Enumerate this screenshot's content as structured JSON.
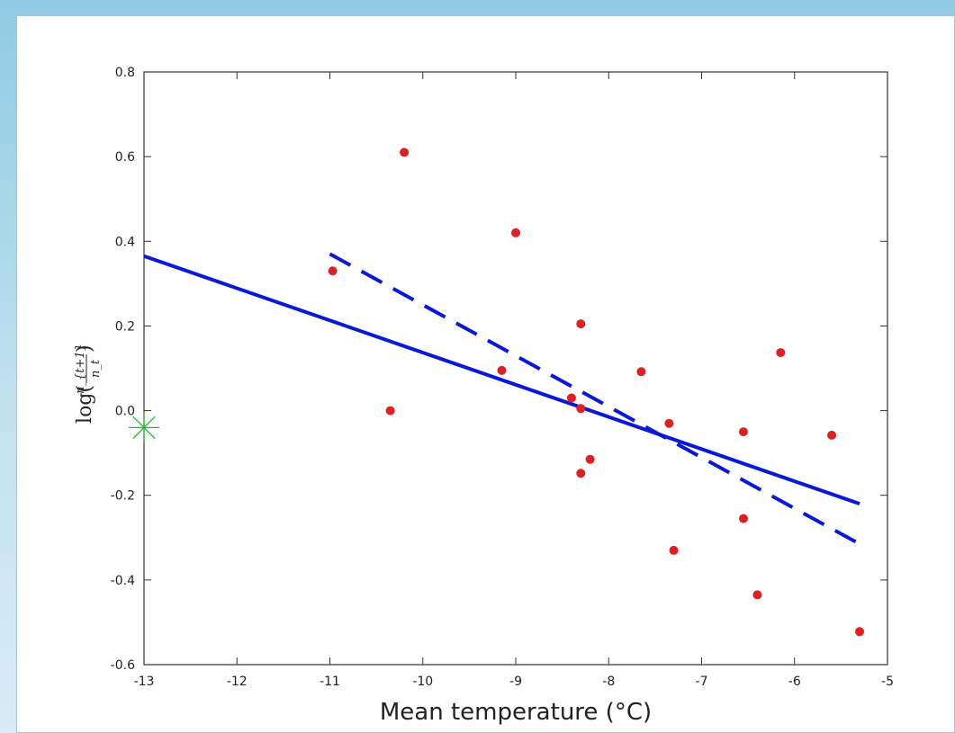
{
  "chart_data": {
    "type": "scatter",
    "xlabel": "Mean temperature (°C)",
    "ylabel": {
      "prefix": "log(",
      "numerator": "n_{t+1}",
      "denominator": "n_t",
      "suffix": ")"
    },
    "xlim": [
      -13,
      -5
    ],
    "ylim": [
      -0.6,
      0.8
    ],
    "x_ticks": [
      "-13",
      "-12",
      "-11",
      "-10",
      "-9",
      "-8",
      "-7",
      "-6",
      "-5"
    ],
    "y_ticks": [
      "-0.6",
      "-0.4",
      "-0.2",
      "0.0",
      "0.2",
      "0.4",
      "0.6",
      "0.8"
    ],
    "grid": false,
    "series": [
      {
        "kind": "points",
        "color": "#e02020",
        "points": [
          [
            -10.97,
            0.33
          ],
          [
            -10.2,
            0.61
          ],
          [
            -10.35,
            0.0
          ],
          [
            -9.0,
            0.42
          ],
          [
            -9.15,
            0.095
          ],
          [
            -8.4,
            0.03
          ],
          [
            -8.3,
            0.005
          ],
          [
            -8.3,
            0.205
          ],
          [
            -8.3,
            -0.148
          ],
          [
            -8.2,
            -0.115
          ],
          [
            -7.65,
            0.092
          ],
          [
            -7.35,
            -0.03
          ],
          [
            -7.3,
            -0.33
          ],
          [
            -6.55,
            -0.05
          ],
          [
            -6.55,
            -0.255
          ],
          [
            -6.4,
            -0.435
          ],
          [
            -6.15,
            0.137
          ],
          [
            -5.6,
            -0.058
          ],
          [
            -5.3,
            -0.522
          ]
        ]
      },
      {
        "kind": "line",
        "style": "solid",
        "color": "#0a19d6",
        "points": [
          [
            -13,
            0.365
          ],
          [
            -5.3,
            -0.22
          ]
        ]
      },
      {
        "kind": "line",
        "style": "dashed",
        "color": "#0a19d6",
        "points": [
          [
            -11,
            0.37
          ],
          [
            -5.3,
            -0.315
          ]
        ]
      },
      {
        "kind": "marker",
        "marker": "asterisk",
        "color": "#22bb33",
        "points": [
          [
            -13,
            -0.04
          ]
        ]
      }
    ]
  }
}
